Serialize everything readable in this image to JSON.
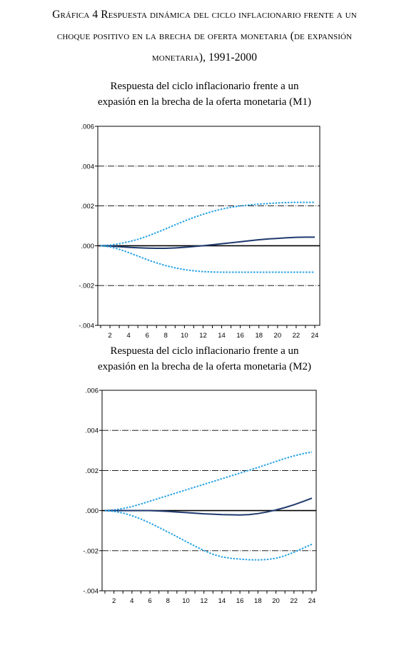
{
  "figure": {
    "title_line1": "Gráfica 4 Respuesta dinámica del ciclo inflacionario frente a un",
    "title_line2": "choque positivo en la brecha de oferta monetaria (de expansión",
    "title_line3": "monetaria), 1991-2000"
  },
  "colors": {
    "response": "#1f3a6e",
    "band": "#2aa3e6",
    "zero_line": "#000000",
    "grid": "#000000"
  },
  "chart_data": [
    {
      "type": "line",
      "title_line1": "Respuesta del ciclo inflacionario frente a un",
      "title_line2": "expasión en la brecha de la oferta monetaria (M1)",
      "xlabel": "",
      "ylabel": "",
      "x": [
        1,
        2,
        3,
        4,
        5,
        6,
        7,
        8,
        9,
        10,
        11,
        12,
        13,
        14,
        15,
        16,
        17,
        18,
        19,
        20,
        21,
        22,
        23,
        24
      ],
      "xticks": [
        "2",
        "4",
        "6",
        "8",
        "10",
        "12",
        "14",
        "16",
        "18",
        "20",
        "22",
        "24"
      ],
      "xlim": [
        1,
        24
      ],
      "ylim": [
        -0.004,
        0.006
      ],
      "yticks": [
        ".006",
        ".004",
        ".002",
        ".000",
        "-.002",
        "-.004"
      ],
      "gridlines_y": [
        0.004,
        0.002,
        -0.002
      ],
      "series": [
        {
          "style": "upper-band",
          "values": [
            0.0,
            3e-05,
            0.0001,
            0.0002,
            0.00032,
            0.00048,
            0.00066,
            0.00085,
            0.00105,
            0.00124,
            0.00142,
            0.00158,
            0.00172,
            0.00184,
            0.00193,
            0.002,
            0.00205,
            0.00209,
            0.00212,
            0.00215,
            0.00217,
            0.00218,
            0.00218,
            0.00218
          ]
        },
        {
          "style": "response",
          "values": [
            0.0,
            -2e-05,
            -5e-05,
            -8e-05,
            -0.0001,
            -0.00012,
            -0.00013,
            -0.00013,
            -0.00011,
            -8e-05,
            -4e-05,
            0.0,
            5e-05,
            0.0001,
            0.00015,
            0.0002,
            0.00025,
            0.0003,
            0.00034,
            0.00037,
            0.0004,
            0.00042,
            0.00043,
            0.00043
          ]
        },
        {
          "style": "lower-band",
          "values": [
            0.0,
            -6e-05,
            -0.00018,
            -0.00034,
            -0.00052,
            -0.0007,
            -0.00086,
            -0.001,
            -0.00111,
            -0.0012,
            -0.00126,
            -0.0013,
            -0.00132,
            -0.00133,
            -0.00133,
            -0.00133,
            -0.00133,
            -0.00133,
            -0.00133,
            -0.00133,
            -0.00133,
            -0.00133,
            -0.00133,
            -0.00133
          ]
        }
      ]
    },
    {
      "type": "line",
      "title_line1": "Respuesta del ciclo inflacionario frente a un",
      "title_line2": "expasión en la brecha de la oferta monetaria (M2)",
      "xlabel": "",
      "ylabel": "",
      "x": [
        1,
        2,
        3,
        4,
        5,
        6,
        7,
        8,
        9,
        10,
        11,
        12,
        13,
        14,
        15,
        16,
        17,
        18,
        19,
        20,
        21,
        22,
        23,
        24
      ],
      "xticks": [
        "2",
        "4",
        "6",
        "8",
        "10",
        "12",
        "14",
        "16",
        "18",
        "20",
        "22",
        "24"
      ],
      "xlim": [
        1,
        24
      ],
      "ylim": [
        -0.004,
        0.006
      ],
      "yticks": [
        ".006",
        ".004",
        ".002",
        ".000",
        "-.002",
        "-.004"
      ],
      "gridlines_y": [
        0.004,
        0.002,
        -0.002
      ],
      "series": [
        {
          "style": "upper-band",
          "values": [
            0.0,
            3e-05,
            0.0001,
            0.0002,
            0.00033,
            0.00047,
            0.00061,
            0.00075,
            0.00089,
            0.00103,
            0.00117,
            0.00131,
            0.00145,
            0.00159,
            0.00173,
            0.00187,
            0.00201,
            0.00215,
            0.0023,
            0.00245,
            0.0026,
            0.00273,
            0.00284,
            0.00292
          ]
        },
        {
          "style": "response",
          "values": [
            0.0,
            0.0,
            0.0,
            0.0,
            0.0,
            0.0,
            -2e-05,
            -4e-05,
            -7e-05,
            -0.0001,
            -0.00013,
            -0.00016,
            -0.00018,
            -0.0002,
            -0.00021,
            -0.00022,
            -0.0002,
            -0.00015,
            -7e-05,
            3e-05,
            0.00015,
            0.00029,
            0.00045,
            0.00062
          ]
        },
        {
          "style": "lower-band",
          "values": [
            0.0,
            -4e-05,
            -0.00012,
            -0.00025,
            -0.00042,
            -0.00062,
            -0.00084,
            -0.00107,
            -0.0013,
            -0.00154,
            -0.00177,
            -0.00199,
            -0.00218,
            -0.00231,
            -0.00238,
            -0.00242,
            -0.00245,
            -0.00246,
            -0.00244,
            -0.00238,
            -0.00225,
            -0.00208,
            -0.00188,
            -0.00168
          ]
        }
      ]
    }
  ]
}
